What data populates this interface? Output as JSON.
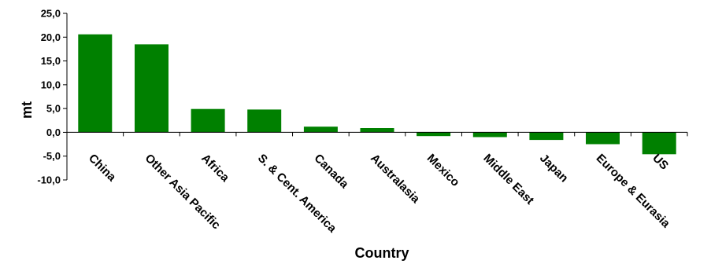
{
  "chart_data": {
    "type": "bar",
    "title": "",
    "xlabel": "Country",
    "ylabel": "mt",
    "categories": [
      "China",
      "Other Asia Pacific",
      "Africa",
      "S. & Cent. America",
      "Canada",
      "Australasia",
      "Mexico",
      "Middle East",
      "Japan",
      "Europe & Eurasia",
      "US"
    ],
    "values": [
      20.6,
      18.5,
      4.9,
      4.8,
      1.2,
      0.9,
      -0.8,
      -1.0,
      -1.6,
      -2.5,
      -4.6
    ],
    "ylim": [
      -10,
      25
    ],
    "yticks": [
      "-10,0",
      "-5,0",
      "0,0",
      "5,0",
      "10,0",
      "15,0",
      "20,0",
      "25,0"
    ],
    "grid": false,
    "legend": "none",
    "bar_color": "#008000"
  }
}
